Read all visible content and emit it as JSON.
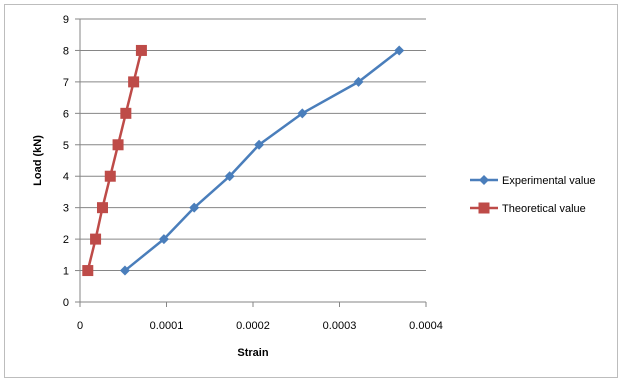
{
  "chart_data": {
    "type": "line",
    "xlabel": "Strain",
    "ylabel": "Load (kN)",
    "xlim": [
      0,
      0.0004
    ],
    "ylim": [
      0,
      9
    ],
    "xticks": [
      "0",
      "0.0001",
      "0.0002",
      "0.0003",
      "0.0004"
    ],
    "yticks": [
      "0",
      "1",
      "2",
      "3",
      "4",
      "5",
      "6",
      "7",
      "8",
      "9"
    ],
    "grid": "horizontal",
    "legend_position": "right",
    "series": [
      {
        "name": "Experimental value",
        "color": "#4a7ebb",
        "marker": "diamond",
        "x": [
          5.2e-05,
          9.7e-05,
          0.000132,
          0.000173,
          0.000207,
          0.000257,
          0.000322,
          0.000369
        ],
        "y": [
          1,
          2,
          3,
          4,
          5,
          6,
          7,
          8
        ]
      },
      {
        "name": "Theoretical value",
        "color": "#be4b48",
        "marker": "square",
        "x": [
          9e-06,
          1.8e-05,
          2.6e-05,
          3.5e-05,
          4.4e-05,
          5.3e-05,
          6.2e-05,
          7.1e-05
        ],
        "y": [
          1,
          2,
          3,
          4,
          5,
          6,
          7,
          8
        ]
      }
    ]
  }
}
